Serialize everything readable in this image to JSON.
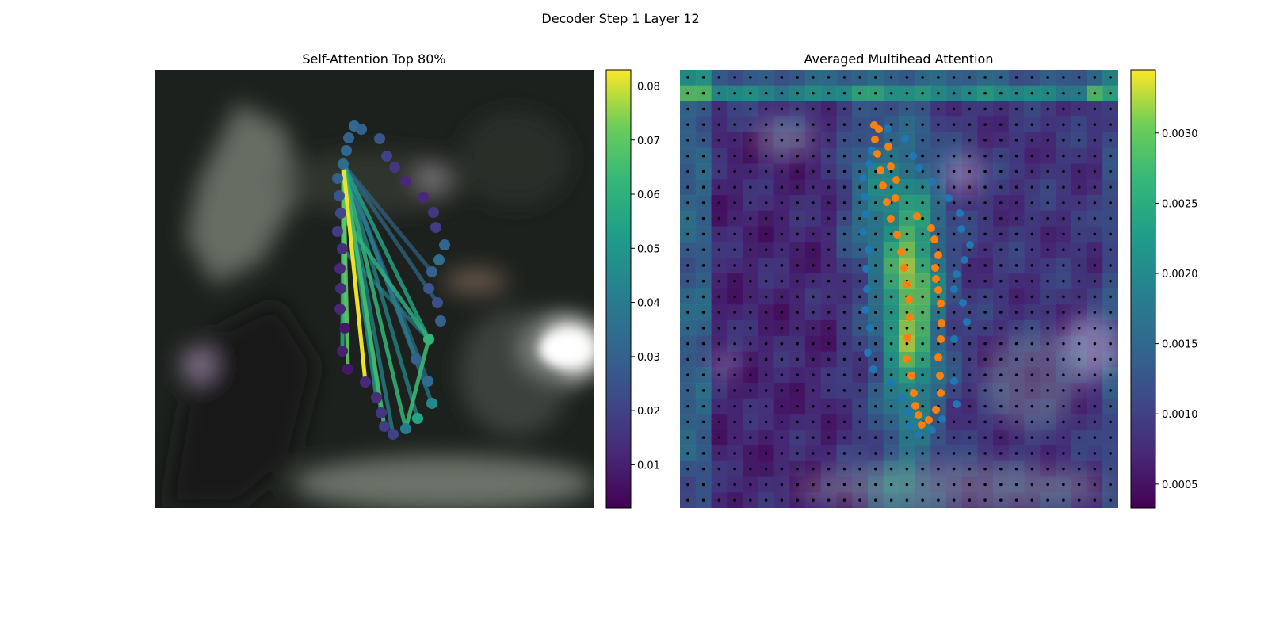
{
  "figure": {
    "suptitle": "Decoder Step 1 Layer 12"
  },
  "chart_data": [
    {
      "type": "scatter",
      "title": "Self-Attention Top 80%",
      "colormap": "viridis",
      "colorbar": {
        "range": [
          0.002,
          0.083
        ],
        "ticks": [
          "0.01",
          "0.02",
          "0.03",
          "0.04",
          "0.05",
          "0.06",
          "0.07",
          "0.08"
        ],
        "tick_values": [
          0.01,
          0.02,
          0.03,
          0.04,
          0.05,
          0.06,
          0.07,
          0.08
        ]
      },
      "background": "blurred grayscale image (dark scene)",
      "points": [
        {
          "x": 447,
          "y": 159,
          "v": 0.033
        },
        {
          "x": 456,
          "y": 163,
          "v": 0.03
        },
        {
          "x": 479,
          "y": 175,
          "v": 0.026
        },
        {
          "x": 488,
          "y": 197,
          "v": 0.02
        },
        {
          "x": 498,
          "y": 211,
          "v": 0.016
        },
        {
          "x": 512,
          "y": 229,
          "v": 0.012
        },
        {
          "x": 534,
          "y": 249,
          "v": 0.012
        },
        {
          "x": 547,
          "y": 268,
          "v": 0.016
        },
        {
          "x": 550,
          "y": 287,
          "v": 0.018
        },
        {
          "x": 561,
          "y": 309,
          "v": 0.032
        },
        {
          "x": 554,
          "y": 328,
          "v": 0.035
        },
        {
          "x": 545,
          "y": 343,
          "v": 0.03
        },
        {
          "x": 541,
          "y": 364,
          "v": 0.026
        },
        {
          "x": 552,
          "y": 382,
          "v": 0.024
        },
        {
          "x": 556,
          "y": 405,
          "v": 0.03
        },
        {
          "x": 541,
          "y": 428,
          "v": 0.062
        },
        {
          "x": 525,
          "y": 453,
          "v": 0.03
        },
        {
          "x": 540,
          "y": 481,
          "v": 0.033
        },
        {
          "x": 545,
          "y": 509,
          "v": 0.045
        },
        {
          "x": 527,
          "y": 528,
          "v": 0.055
        },
        {
          "x": 512,
          "y": 541,
          "v": 0.04
        },
        {
          "x": 496,
          "y": 548,
          "v": 0.02
        },
        {
          "x": 485,
          "y": 538,
          "v": 0.018
        },
        {
          "x": 481,
          "y": 521,
          "v": 0.016
        },
        {
          "x": 475,
          "y": 502,
          "v": 0.014
        },
        {
          "x": 461,
          "y": 482,
          "v": 0.012
        },
        {
          "x": 439,
          "y": 466,
          "v": 0.008
        },
        {
          "x": 432,
          "y": 443,
          "v": 0.01
        },
        {
          "x": 435,
          "y": 414,
          "v": 0.008
        },
        {
          "x": 429,
          "y": 390,
          "v": 0.012
        },
        {
          "x": 430,
          "y": 364,
          "v": 0.014
        },
        {
          "x": 429,
          "y": 339,
          "v": 0.012
        },
        {
          "x": 432,
          "y": 314,
          "v": 0.014
        },
        {
          "x": 426,
          "y": 292,
          "v": 0.018
        },
        {
          "x": 430,
          "y": 269,
          "v": 0.022
        },
        {
          "x": 428,
          "y": 247,
          "v": 0.026
        },
        {
          "x": 426,
          "y": 225,
          "v": 0.03
        },
        {
          "x": 433,
          "y": 207,
          "v": 0.034
        },
        {
          "x": 437,
          "y": 190,
          "v": 0.032
        },
        {
          "x": 440,
          "y": 174,
          "v": 0.03
        }
      ],
      "edges": [
        {
          "a": 37,
          "b": 25,
          "v": 0.082
        },
        {
          "a": 37,
          "b": 28,
          "v": 0.065
        },
        {
          "a": 37,
          "b": 26,
          "v": 0.07
        },
        {
          "a": 37,
          "b": 20,
          "v": 0.062
        },
        {
          "a": 37,
          "b": 22,
          "v": 0.066
        },
        {
          "a": 37,
          "b": 15,
          "v": 0.055
        },
        {
          "a": 37,
          "b": 19,
          "v": 0.045
        },
        {
          "a": 37,
          "b": 18,
          "v": 0.04
        },
        {
          "a": 37,
          "b": 16,
          "v": 0.038
        },
        {
          "a": 37,
          "b": 21,
          "v": 0.044
        },
        {
          "a": 37,
          "b": 17,
          "v": 0.036
        },
        {
          "a": 37,
          "b": 13,
          "v": 0.034
        },
        {
          "a": 37,
          "b": 11,
          "v": 0.032
        },
        {
          "a": 37,
          "b": 23,
          "v": 0.05
        },
        {
          "a": 37,
          "b": 24,
          "v": 0.052
        },
        {
          "a": 37,
          "b": 27,
          "v": 0.058
        },
        {
          "a": 34,
          "b": 15,
          "v": 0.06
        },
        {
          "a": 15,
          "b": 20,
          "v": 0.064
        },
        {
          "a": 32,
          "b": 15,
          "v": 0.04
        }
      ]
    },
    {
      "type": "heatmap",
      "title": "Averaged Multihead Attention",
      "colormap": "viridis",
      "grid": [
        28,
        28
      ],
      "colorbar": {
        "range": [
          0.00033,
          0.00345
        ],
        "ticks": [
          "0.0005",
          "0.0010",
          "0.0015",
          "0.0020",
          "0.0025",
          "0.0030"
        ],
        "tick_values": [
          0.0005,
          0.001,
          0.0015,
          0.002,
          0.0025,
          0.003
        ]
      },
      "series": [
        {
          "color": "#1f77b4",
          "points": [
            [
              1120,
              162
            ],
            [
              1142,
              175
            ],
            [
              1152,
              197
            ],
            [
              1160,
              212
            ],
            [
              1176,
              229
            ],
            [
              1197,
              250
            ],
            [
              1211,
              269
            ],
            [
              1213,
              289
            ],
            [
              1224,
              309
            ],
            [
              1217,
              328
            ],
            [
              1207,
              346
            ],
            [
              1204,
              365
            ],
            [
              1215,
              382
            ],
            [
              1220,
              406
            ],
            [
              1204,
              428
            ],
            [
              1187,
              452
            ],
            [
              1204,
              481
            ],
            [
              1207,
              510
            ],
            [
              1189,
              529
            ],
            [
              1176,
              543
            ],
            [
              1159,
              549
            ],
            [
              1148,
              537
            ],
            [
              1146,
              520
            ],
            [
              1138,
              502
            ],
            [
              1124,
              483
            ],
            [
              1102,
              466
            ],
            [
              1095,
              445
            ],
            [
              1098,
              414
            ],
            [
              1092,
              391
            ],
            [
              1094,
              365
            ],
            [
              1093,
              339
            ],
            [
              1096,
              315
            ],
            [
              1089,
              293
            ],
            [
              1093,
              270
            ],
            [
              1091,
              248
            ],
            [
              1089,
              225
            ],
            [
              1097,
              207
            ],
            [
              1100,
              190
            ]
          ]
        },
        {
          "color": "#ff7f0e",
          "points": [
            [
              1103,
              158
            ],
            [
              1109,
              163
            ],
            [
              1104,
              176
            ],
            [
              1121,
              185
            ],
            [
              1107,
              194
            ],
            [
              1124,
              210
            ],
            [
              1111,
              215
            ],
            [
              1131,
              227
            ],
            [
              1114,
              234
            ],
            [
              1130,
              250
            ],
            [
              1119,
              255
            ],
            [
              1157,
              273
            ],
            [
              1124,
              276
            ],
            [
              1175,
              288
            ],
            [
              1132,
              296
            ],
            [
              1179,
              302
            ],
            [
              1137,
              318
            ],
            [
              1184,
              322
            ],
            [
              1141,
              338
            ],
            [
              1180,
              338
            ],
            [
              1181,
              352
            ],
            [
              1144,
              359
            ],
            [
              1184,
              366
            ],
            [
              1147,
              378
            ],
            [
              1187,
              383
            ],
            [
              1148,
              400
            ],
            [
              1188,
              408
            ],
            [
              1145,
              426
            ],
            [
              1187,
              428
            ],
            [
              1144,
              453
            ],
            [
              1184,
              451
            ],
            [
              1150,
              474
            ],
            [
              1186,
              474
            ],
            [
              1153,
              496
            ],
            [
              1187,
              496
            ],
            [
              1155,
              512
            ],
            [
              1181,
              517
            ],
            [
              1159,
              524
            ],
            [
              1172,
              530
            ],
            [
              1163,
              536
            ]
          ]
        }
      ]
    }
  ]
}
